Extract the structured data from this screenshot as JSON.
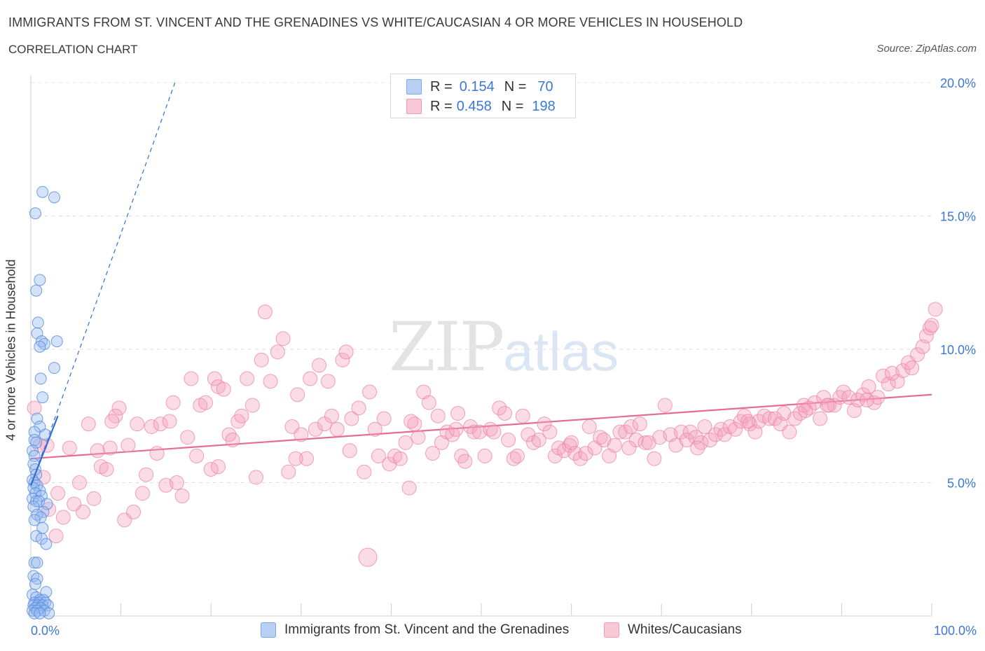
{
  "header": {
    "title": "IMMIGRANTS FROM ST. VINCENT AND THE GRENADINES VS WHITE/CAUCASIAN 4 OR MORE VEHICLES IN HOUSEHOLD",
    "subtitle": "CORRELATION CHART",
    "source": "Source: ZipAtlas.com"
  },
  "watermark": {
    "zip": "ZIP",
    "atlas": "atlas"
  },
  "legend": {
    "rows": [
      {
        "r_label": "R =",
        "r_value": "0.154",
        "n_label": "N =",
        "n_value": "70",
        "color": "#aac8f0"
      },
      {
        "r_label": "R =",
        "r_value": "0.458",
        "n_label": "N =",
        "n_value": "198",
        "color": "#f8bccc"
      }
    ]
  },
  "bottom_legend": {
    "series1": "Immigrants from St. Vincent and the Grenadines",
    "series2": "Whites/Caucasians"
  },
  "chart_data": {
    "type": "scatter",
    "title": "IMMIGRANTS FROM ST. VINCENT AND THE GRENADINES VS WHITE/CAUCASIAN 4 OR MORE VEHICLES IN HOUSEHOLD",
    "ylabel": "4 or more Vehicles in Household",
    "xlabel": "",
    "x_ticks": [
      "0.0%",
      "100.0%"
    ],
    "y_ticks": [
      "5.0%",
      "10.0%",
      "15.0%",
      "20.0%"
    ],
    "xlim": [
      0,
      100
    ],
    "ylim": [
      0,
      20
    ],
    "grid": true,
    "legend_position": "top-center",
    "colors": {
      "blue": "#6f9fe6",
      "blue_line": "#2f6fd6",
      "pink": "#f096b1",
      "pink_line": "#e36d95"
    },
    "series": [
      {
        "name": "Immigrants from St. Vincent and the Grenadines",
        "color": "#6f9fe6",
        "trend": {
          "x": [
            0.0,
            3.0
          ],
          "y": [
            4.9,
            7.5
          ],
          "extended_x": [
            0.0,
            16.0
          ],
          "extended_y": [
            4.9,
            20.0
          ]
        },
        "points": [
          [
            1.3,
            15.9
          ],
          [
            2.6,
            15.7
          ],
          [
            0.5,
            15.1
          ],
          [
            1.0,
            12.6
          ],
          [
            0.6,
            12.2
          ],
          [
            0.8,
            11.0
          ],
          [
            0.7,
            10.6
          ],
          [
            1.2,
            10.3
          ],
          [
            1.5,
            10.2
          ],
          [
            2.9,
            10.3
          ],
          [
            1.0,
            10.1
          ],
          [
            2.6,
            9.3
          ],
          [
            1.1,
            8.9
          ],
          [
            1.3,
            8.2
          ],
          [
            0.7,
            7.4
          ],
          [
            1.0,
            7.1
          ],
          [
            0.4,
            6.9
          ],
          [
            1.6,
            6.8
          ],
          [
            0.4,
            6.6
          ],
          [
            0.6,
            6.5
          ],
          [
            0.2,
            6.2
          ],
          [
            0.4,
            6.0
          ],
          [
            0.3,
            5.7
          ],
          [
            0.5,
            5.5
          ],
          [
            0.6,
            5.3
          ],
          [
            0.2,
            5.1
          ],
          [
            0.4,
            5.0
          ],
          [
            0.7,
            4.9
          ],
          [
            0.3,
            4.8
          ],
          [
            1.0,
            4.7
          ],
          [
            0.5,
            4.6
          ],
          [
            1.2,
            4.5
          ],
          [
            0.2,
            4.4
          ],
          [
            0.6,
            4.3
          ],
          [
            0.9,
            4.3
          ],
          [
            1.8,
            4.2
          ],
          [
            0.3,
            4.1
          ],
          [
            1.4,
            3.9
          ],
          [
            0.7,
            3.8
          ],
          [
            1.1,
            3.7
          ],
          [
            0.4,
            3.6
          ],
          [
            1.3,
            3.3
          ],
          [
            0.6,
            3.0
          ],
          [
            1.2,
            2.9
          ],
          [
            1.7,
            2.7
          ],
          [
            0.4,
            2.0
          ],
          [
            0.7,
            2.0
          ],
          [
            0.3,
            1.5
          ],
          [
            0.7,
            1.4
          ],
          [
            0.5,
            1.2
          ],
          [
            1.7,
            0.9
          ],
          [
            0.2,
            0.8
          ],
          [
            0.6,
            0.7
          ],
          [
            1.0,
            0.6
          ],
          [
            1.4,
            0.6
          ],
          [
            0.4,
            0.5
          ],
          [
            0.9,
            0.5
          ],
          [
            1.6,
            0.5
          ],
          [
            0.3,
            0.4
          ],
          [
            0.8,
            0.4
          ],
          [
            1.3,
            0.4
          ],
          [
            1.9,
            0.4
          ],
          [
            0.5,
            0.3
          ],
          [
            1.1,
            0.3
          ],
          [
            0.2,
            0.2
          ],
          [
            0.7,
            0.2
          ],
          [
            1.5,
            0.2
          ],
          [
            2.0,
            0.1
          ],
          [
            0.4,
            0.1
          ],
          [
            1.0,
            0.1
          ]
        ]
      },
      {
        "name": "Whites/Caucasians",
        "color": "#f096b1",
        "trend": {
          "x": [
            0.0,
            100.0
          ],
          "y": [
            5.9,
            8.3
          ]
        },
        "points": [
          [
            0.4,
            7.8
          ],
          [
            1.0,
            6.4
          ],
          [
            1.4,
            5.2
          ],
          [
            2.0,
            4.0
          ],
          [
            2.8,
            3.0
          ],
          [
            3.0,
            4.6
          ],
          [
            3.6,
            3.7
          ],
          [
            4.3,
            6.3
          ],
          [
            5.4,
            5.0
          ],
          [
            5.8,
            3.9
          ],
          [
            6.4,
            7.2
          ],
          [
            7.0,
            4.4
          ],
          [
            7.4,
            6.2
          ],
          [
            7.8,
            5.6
          ],
          [
            8.4,
            5.5
          ],
          [
            8.8,
            6.3
          ],
          [
            9.4,
            7.5
          ],
          [
            9.8,
            7.8
          ],
          [
            10.4,
            3.6
          ],
          [
            10.8,
            6.4
          ],
          [
            11.4,
            3.9
          ],
          [
            11.8,
            7.2
          ],
          [
            12.4,
            4.6
          ],
          [
            12.8,
            5.3
          ],
          [
            13.4,
            7.1
          ],
          [
            14.0,
            6.1
          ],
          [
            14.4,
            7.2
          ],
          [
            15.0,
            4.9
          ],
          [
            15.8,
            8.0
          ],
          [
            16.2,
            5.0
          ],
          [
            16.8,
            4.5
          ],
          [
            17.4,
            6.7
          ],
          [
            17.8,
            8.9
          ],
          [
            18.4,
            6.0
          ],
          [
            18.8,
            7.9
          ],
          [
            19.4,
            8.0
          ],
          [
            20.0,
            5.5
          ],
          [
            20.4,
            8.9
          ],
          [
            20.8,
            8.6
          ],
          [
            21.4,
            8.5
          ],
          [
            22.0,
            6.8
          ],
          [
            22.4,
            6.6
          ],
          [
            23.0,
            7.3
          ],
          [
            23.4,
            7.5
          ],
          [
            24.0,
            8.9
          ],
          [
            24.6,
            7.9
          ],
          [
            25.0,
            5.2
          ],
          [
            25.6,
            9.6
          ],
          [
            26.0,
            11.4
          ],
          [
            26.6,
            8.8
          ],
          [
            27.4,
            9.9
          ],
          [
            28.0,
            10.4
          ],
          [
            28.6,
            5.4
          ],
          [
            29.0,
            7.1
          ],
          [
            29.6,
            8.3
          ],
          [
            30.0,
            6.8
          ],
          [
            30.6,
            5.9
          ],
          [
            31.0,
            8.9
          ],
          [
            31.6,
            7.0
          ],
          [
            32.0,
            9.4
          ],
          [
            32.6,
            7.2
          ],
          [
            33.0,
            8.8
          ],
          [
            33.4,
            7.5
          ],
          [
            34.0,
            7.0
          ],
          [
            34.6,
            9.6
          ],
          [
            35.0,
            9.9
          ],
          [
            35.6,
            7.4
          ],
          [
            36.4,
            7.8
          ],
          [
            37.0,
            5.4
          ],
          [
            37.6,
            8.4
          ],
          [
            38.2,
            7.0
          ],
          [
            38.6,
            6.0
          ],
          [
            39.2,
            7.4
          ],
          [
            39.8,
            5.7
          ],
          [
            40.4,
            6.0
          ],
          [
            41.0,
            5.9
          ],
          [
            41.6,
            6.5
          ],
          [
            42.0,
            4.8
          ],
          [
            42.6,
            7.2
          ],
          [
            43.0,
            6.7
          ],
          [
            43.6,
            8.4
          ],
          [
            44.2,
            8.0
          ],
          [
            44.6,
            6.1
          ],
          [
            45.2,
            7.5
          ],
          [
            45.6,
            6.5
          ],
          [
            46.2,
            6.9
          ],
          [
            46.8,
            6.8
          ],
          [
            47.2,
            7.0
          ],
          [
            47.8,
            6.0
          ],
          [
            48.2,
            5.8
          ],
          [
            48.8,
            7.1
          ],
          [
            49.2,
            6.9
          ],
          [
            49.8,
            6.9
          ],
          [
            50.4,
            6.0
          ],
          [
            51.0,
            7.0
          ],
          [
            51.4,
            6.9
          ],
          [
            52.0,
            7.8
          ],
          [
            52.6,
            7.6
          ],
          [
            53.0,
            6.6
          ],
          [
            53.6,
            5.9
          ],
          [
            54.0,
            6.0
          ],
          [
            54.6,
            7.5
          ],
          [
            55.2,
            6.8
          ],
          [
            55.8,
            6.5
          ],
          [
            56.4,
            6.6
          ],
          [
            57.0,
            7.2
          ],
          [
            57.6,
            6.9
          ],
          [
            58.2,
            6.0
          ],
          [
            58.6,
            6.3
          ],
          [
            59.2,
            6.2
          ],
          [
            59.8,
            6.4
          ],
          [
            60.4,
            6.1
          ],
          [
            61.0,
            5.9
          ],
          [
            61.6,
            6.1
          ],
          [
            62.0,
            7.1
          ],
          [
            62.6,
            6.3
          ],
          [
            63.2,
            6.7
          ],
          [
            63.6,
            6.6
          ],
          [
            64.2,
            6.0
          ],
          [
            64.8,
            6.4
          ],
          [
            65.4,
            6.9
          ],
          [
            66.0,
            6.9
          ],
          [
            66.6,
            7.1
          ],
          [
            67.2,
            6.6
          ],
          [
            67.6,
            7.2
          ],
          [
            68.2,
            6.5
          ],
          [
            68.6,
            6.5
          ],
          [
            69.2,
            5.9
          ],
          [
            69.8,
            6.7
          ],
          [
            70.4,
            7.9
          ],
          [
            71.0,
            6.8
          ],
          [
            71.6,
            6.4
          ],
          [
            72.2,
            6.9
          ],
          [
            72.8,
            6.6
          ],
          [
            73.2,
            6.9
          ],
          [
            73.8,
            6.7
          ],
          [
            74.4,
            6.5
          ],
          [
            74.8,
            7.1
          ],
          [
            75.4,
            6.6
          ],
          [
            76.0,
            6.8
          ],
          [
            76.6,
            7.0
          ],
          [
            77.0,
            6.8
          ],
          [
            77.6,
            7.1
          ],
          [
            78.2,
            7.0
          ],
          [
            78.8,
            7.3
          ],
          [
            79.2,
            7.5
          ],
          [
            79.8,
            7.2
          ],
          [
            80.4,
            6.9
          ],
          [
            80.8,
            7.3
          ],
          [
            81.4,
            7.5
          ],
          [
            82.0,
            7.4
          ],
          [
            82.6,
            7.4
          ],
          [
            83.2,
            7.2
          ],
          [
            83.6,
            7.6
          ],
          [
            84.2,
            6.9
          ],
          [
            84.8,
            7.4
          ],
          [
            85.4,
            7.6
          ],
          [
            85.8,
            7.9
          ],
          [
            86.4,
            7.8
          ],
          [
            87.0,
            8.0
          ],
          [
            87.6,
            7.4
          ],
          [
            88.0,
            8.2
          ],
          [
            88.6,
            7.9
          ],
          [
            89.2,
            7.9
          ],
          [
            89.8,
            8.2
          ],
          [
            90.2,
            8.4
          ],
          [
            90.8,
            8.2
          ],
          [
            91.4,
            7.7
          ],
          [
            91.8,
            8.1
          ],
          [
            92.4,
            8.3
          ],
          [
            93.0,
            8.6
          ],
          [
            93.6,
            8.0
          ],
          [
            94.0,
            8.2
          ],
          [
            94.6,
            9.0
          ],
          [
            95.2,
            8.7
          ],
          [
            95.6,
            9.1
          ],
          [
            96.2,
            8.8
          ],
          [
            96.8,
            9.2
          ],
          [
            97.4,
            9.5
          ],
          [
            97.8,
            9.3
          ],
          [
            98.4,
            9.8
          ],
          [
            99.0,
            10.1
          ],
          [
            99.4,
            10.5
          ],
          [
            99.8,
            10.8
          ],
          [
            100.4,
            11.5
          ],
          [
            1.8,
            6.4
          ],
          [
            4.8,
            4.2
          ],
          [
            9.0,
            7.3
          ],
          [
            15.4,
            7.3
          ],
          [
            20.8,
            5.6
          ],
          [
            29.4,
            5.9
          ],
          [
            35.4,
            6.2
          ],
          [
            47.4,
            7.6
          ],
          [
            60.0,
            6.5
          ],
          [
            74.0,
            6.3
          ],
          [
            86.0,
            7.7
          ],
          [
            92.8,
            8.1
          ],
          [
            100.0,
            10.9
          ],
          [
            37.4,
            2.2
          ],
          [
            42.2,
            7.3
          ],
          [
            66.4,
            6.3
          ],
          [
            79.6,
            7.3
          ],
          [
            88.4,
            7.9
          ]
        ]
      }
    ]
  }
}
